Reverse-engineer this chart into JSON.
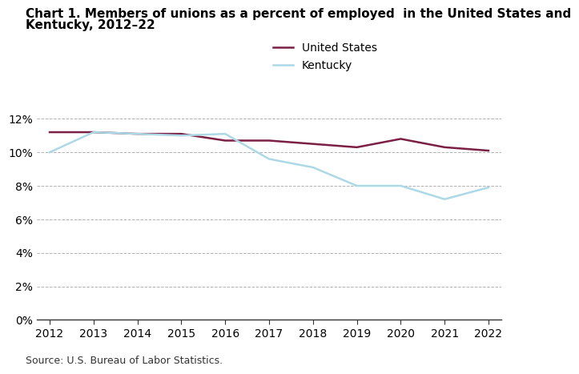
{
  "title_line1": "Chart 1. Members of unions as a percent of employed  in the United States and",
  "title_line2": "Kentucky, 2012–22",
  "years": [
    2012,
    2013,
    2014,
    2015,
    2016,
    2017,
    2018,
    2019,
    2020,
    2021,
    2022
  ],
  "us_values": [
    11.2,
    11.2,
    11.1,
    11.1,
    10.7,
    10.7,
    10.5,
    10.3,
    10.8,
    10.3,
    10.1
  ],
  "ky_values": [
    10.0,
    11.2,
    11.1,
    11.0,
    11.1,
    9.6,
    9.1,
    8.0,
    8.0,
    7.2,
    7.9
  ],
  "us_color": "#7B1F45",
  "ky_color": "#ADD8E6",
  "us_label": "United States",
  "ky_label": "Kentucky",
  "ylim": [
    0,
    13
  ],
  "yticks": [
    0,
    2,
    4,
    6,
    8,
    10,
    12
  ],
  "ytick_labels": [
    "0%",
    "2%",
    "4%",
    "6%",
    "8%",
    "10%",
    "12%"
  ],
  "source": "Source: U.S. Bureau of Labor Statistics.",
  "line_width": 1.8,
  "background_color": "#ffffff",
  "grid_color": "#aaaaaa",
  "title_fontsize": 11,
  "tick_fontsize": 10,
  "source_fontsize": 9
}
